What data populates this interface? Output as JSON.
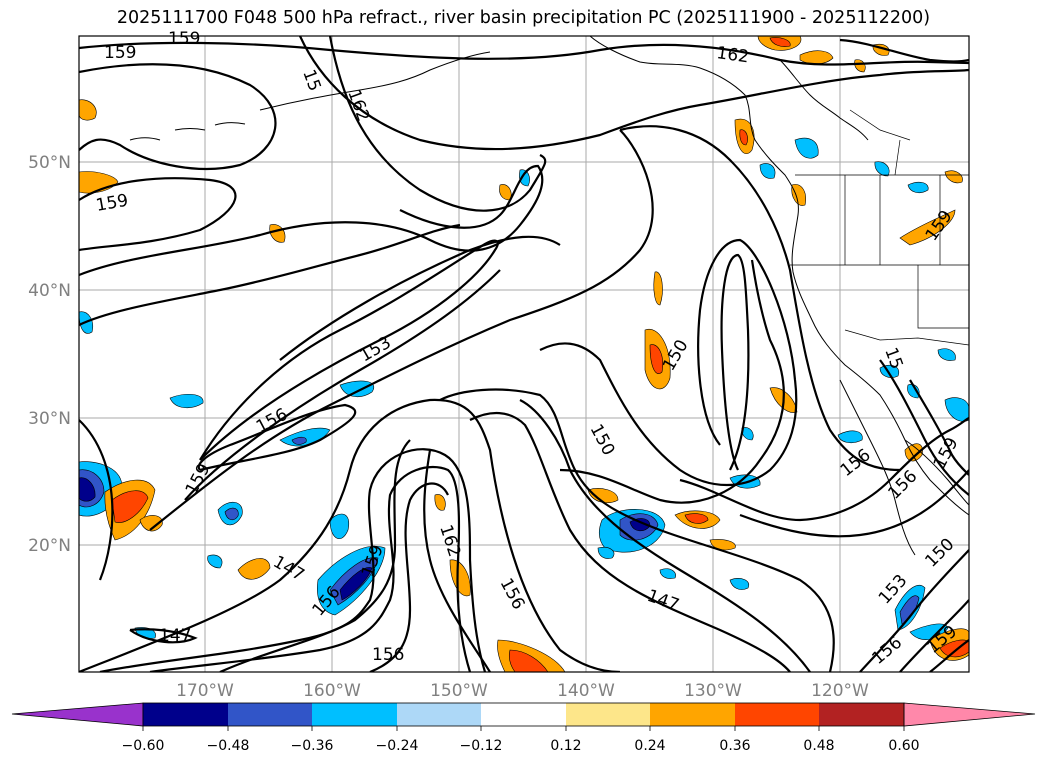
{
  "title": "2025111700 F048 500 hPa refract., river basin precipitation PC (2025111900 - 2025112200)",
  "lat_labels": [
    "50°N",
    "40°N",
    "30°N",
    "20°N"
  ],
  "lon_labels": [
    "170°W",
    "160°W",
    "150°W",
    "140°W",
    "130°W",
    "120°W"
  ],
  "contour_labels": [
    "159",
    "159",
    "15",
    "162",
    "162",
    "159",
    "159",
    "153",
    "156",
    "159",
    "147",
    "156",
    "159",
    "162",
    "156",
    "147",
    "150",
    "150",
    "156",
    "156",
    "153",
    "150",
    "156",
    "159",
    "147",
    "156",
    "15",
    "159"
  ],
  "colorbar": {
    "ticks": [
      "−0.60",
      "−0.48",
      "−0.36",
      "−0.24",
      "−0.12",
      "0.12",
      "0.24",
      "0.36",
      "0.48",
      "0.60"
    ],
    "colors": [
      "#9932cc",
      "#00008b",
      "#3155c8",
      "#00bfff",
      "#add8f7",
      "#ffffff",
      "#fde68a",
      "#ffa500",
      "#ff4500",
      "#b22222",
      "#ff88aa",
      "#ff88aa"
    ]
  },
  "palette": {
    "contour": "#000000",
    "grid": "#aaaaaa",
    "coast": "#000000"
  }
}
